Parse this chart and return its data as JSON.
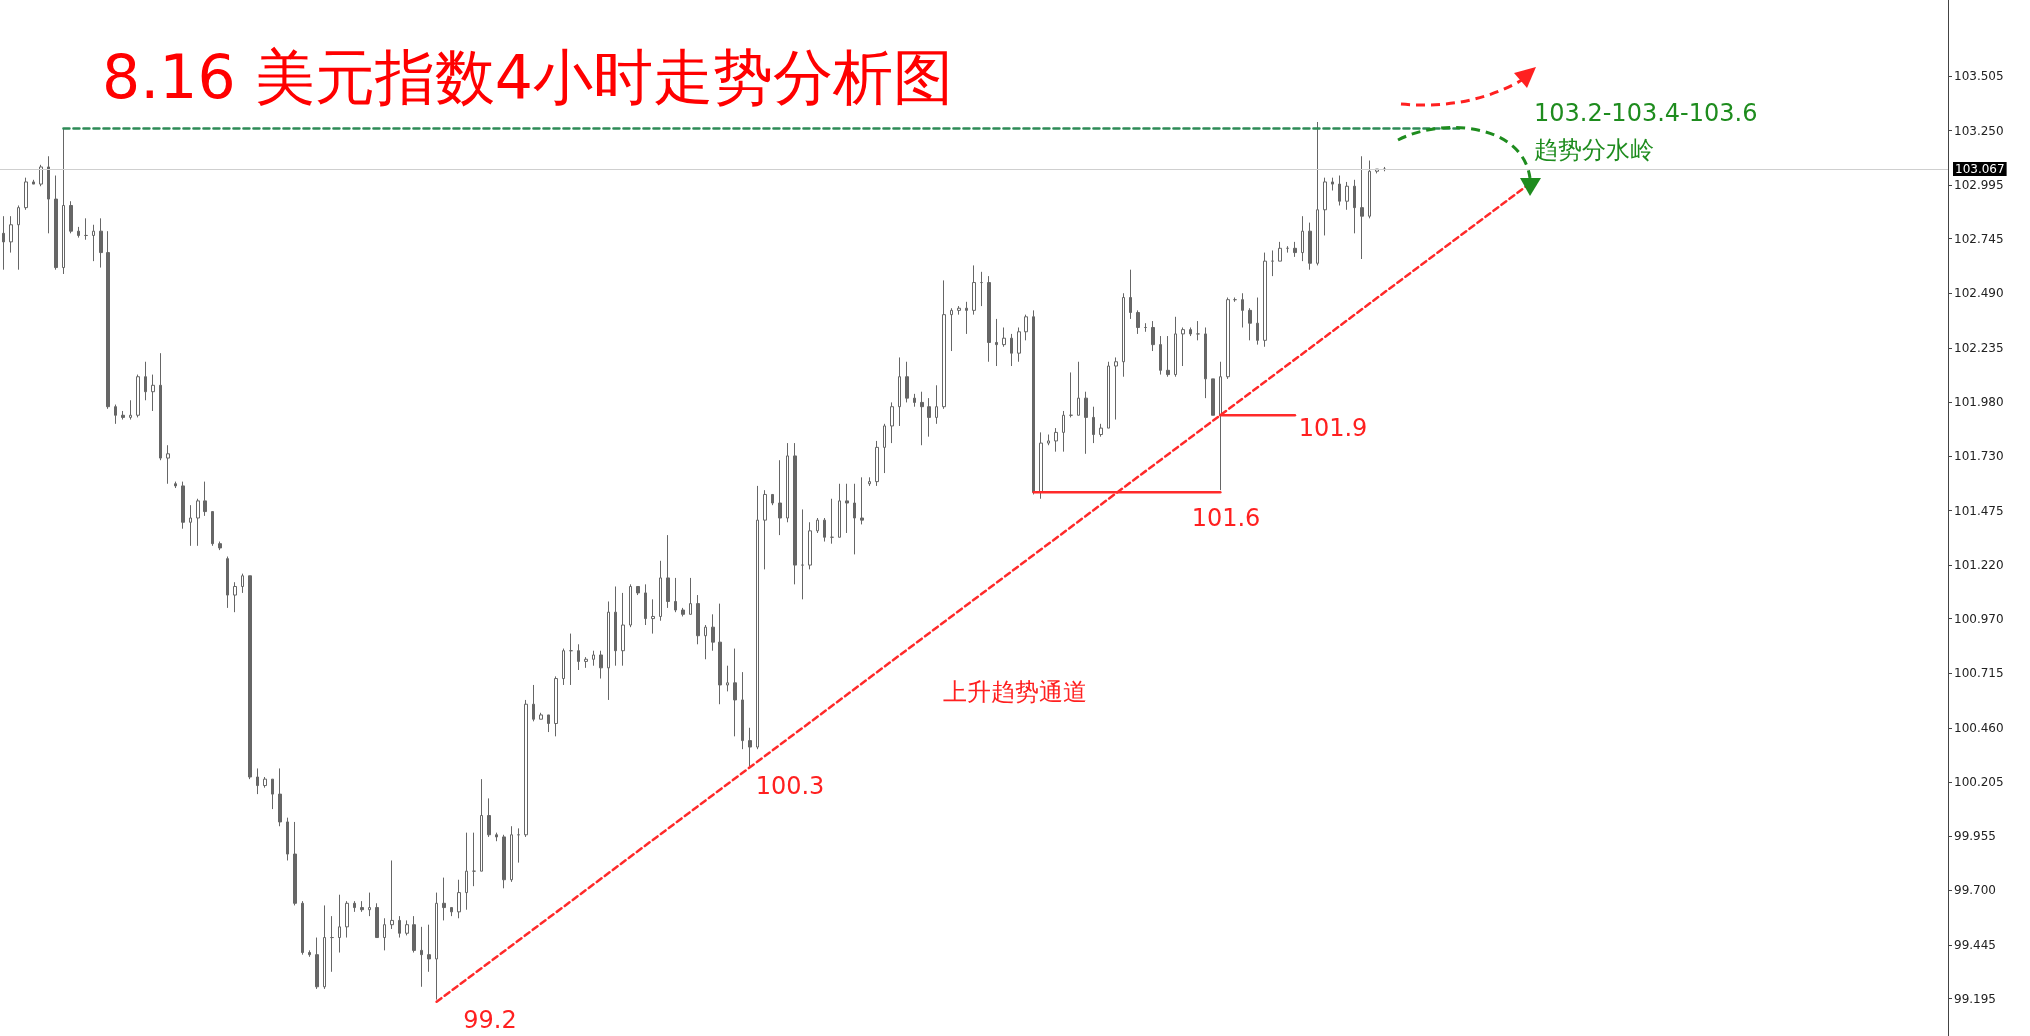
{
  "chart_data": {
    "type": "candlestick",
    "title": "8.16 美元指数4小时走势分析图",
    "color": "#666666",
    "categories": [
      null,
      null,
      null,
      null,
      null,
      null,
      null,
      null,
      null,
      null,
      null,
      null,
      null,
      null,
      null,
      null,
      null,
      null,
      null,
      null,
      null,
      null,
      null,
      null,
      null,
      null,
      null,
      null,
      null,
      null,
      null,
      null,
      null,
      null,
      null,
      null,
      null,
      null,
      null,
      null,
      null,
      null,
      null,
      null,
      null,
      null,
      null,
      null,
      null,
      null,
      null,
      null,
      null,
      null,
      null,
      null,
      null,
      null,
      null,
      null,
      null,
      null,
      null,
      null,
      null,
      null,
      null,
      null,
      null,
      null,
      null,
      null,
      null,
      null,
      null,
      null,
      null,
      null,
      null,
      null,
      null,
      null,
      null,
      null,
      null,
      null,
      null,
      null,
      null,
      null,
      null,
      null,
      null,
      null,
      null,
      null,
      null,
      null,
      null,
      null,
      null,
      null,
      null,
      null,
      null,
      null,
      null,
      null,
      null,
      null,
      null,
      null,
      null,
      null,
      null,
      null,
      null,
      null,
      null,
      null,
      null,
      null,
      null,
      null,
      null,
      null,
      null,
      null,
      null,
      null,
      null,
      null,
      null,
      null,
      null,
      null,
      null,
      null,
      null,
      null,
      null,
      null,
      null,
      null,
      null,
      null,
      null,
      null,
      null,
      null,
      null,
      null,
      null,
      null,
      null,
      null,
      null,
      null,
      null,
      null,
      null,
      null,
      null,
      null,
      null,
      null,
      null,
      null,
      null,
      null,
      null,
      null,
      null,
      null,
      null,
      null,
      null,
      null,
      null,
      null,
      null,
      null,
      null,
      null,
      null,
      null,
      null,
      null,
      null,
      null,
      null,
      null,
      null,
      null,
      null,
      null,
      null,
      null,
      null,
      null,
      null,
      null,
      null,
      null,
      null,
      null,
      null,
      null,
      null,
      null,
      null,
      null,
      null,
      null,
      null,
      null,
      null,
      null,
      null,
      null,
      null,
      null,
      null,
      null,
      null,
      null,
      null,
      null,
      null,
      null,
      null,
      null,
      null,
      null,
      null,
      null,
      null,
      null,
      null,
      null,
      null,
      null,
      null,
      null,
      null,
      null,
      null,
      null,
      null,
      null,
      null,
      null,
      null,
      null,
      null,
      null,
      null,
      null,
      null,
      null,
      null
    ],
    "ohlc": [
      [
        102.77,
        102.85,
        102.6,
        102.73
      ],
      [
        102.73,
        102.85,
        102.68,
        102.81
      ],
      [
        102.81,
        102.9,
        102.6,
        102.89
      ],
      [
        102.89,
        103.03,
        102.88,
        103.01
      ],
      [
        103.01,
        103.02,
        103.0,
        103.0
      ],
      [
        103.0,
        103.09,
        102.99,
        103.08
      ],
      [
        103.08,
        103.13,
        102.77,
        102.93
      ],
      [
        102.93,
        103.04,
        102.6,
        102.61
      ],
      [
        102.61,
        103.26,
        102.58,
        102.9
      ],
      [
        102.9,
        102.92,
        102.77,
        102.78
      ],
      [
        102.78,
        102.8,
        102.75,
        102.76
      ],
      [
        102.76,
        102.84,
        102.74,
        102.76
      ],
      [
        102.76,
        102.81,
        102.64,
        102.78
      ],
      [
        102.78,
        102.84,
        102.61,
        102.68
      ],
      [
        102.68,
        102.78,
        101.95,
        101.96
      ],
      [
        101.96,
        101.97,
        101.88,
        101.92
      ],
      [
        101.92,
        101.94,
        101.9,
        101.91
      ],
      [
        101.91,
        101.99,
        101.9,
        101.92
      ],
      [
        101.92,
        102.11,
        101.91,
        102.1
      ],
      [
        102.1,
        102.17,
        101.99,
        102.03
      ],
      [
        102.03,
        102.11,
        101.94,
        102.06
      ],
      [
        102.06,
        102.21,
        101.71,
        101.72
      ],
      [
        101.72,
        101.78,
        101.6,
        101.74
      ],
      [
        101.6,
        101.61,
        101.58,
        101.59
      ],
      [
        101.59,
        101.61,
        101.39,
        101.42
      ],
      [
        101.42,
        101.5,
        101.31,
        101.44
      ],
      [
        101.44,
        101.53,
        101.31,
        101.52
      ],
      [
        101.52,
        101.61,
        101.45,
        101.47
      ],
      [
        101.47,
        101.47,
        101.31,
        101.32
      ],
      [
        101.32,
        101.33,
        101.29,
        101.3
      ],
      [
        101.25,
        101.26,
        101.02,
        101.08
      ],
      [
        101.08,
        101.14,
        101.0,
        101.12
      ],
      [
        101.12,
        101.18,
        101.09,
        101.17
      ],
      [
        101.17,
        101.17,
        100.22,
        100.23
      ],
      [
        100.23,
        100.27,
        100.15,
        100.19
      ],
      [
        100.19,
        100.23,
        100.18,
        100.22
      ],
      [
        100.22,
        100.22,
        100.08,
        100.15
      ],
      [
        100.15,
        100.27,
        100.0,
        100.02
      ],
      [
        100.02,
        100.04,
        99.84,
        99.87
      ],
      [
        99.87,
        100.02,
        99.63,
        99.64
      ],
      [
        99.64,
        99.65,
        99.4,
        99.41
      ],
      [
        99.41,
        99.42,
        99.39,
        99.4
      ],
      [
        99.4,
        99.48,
        99.24,
        99.25
      ],
      [
        99.25,
        99.63,
        99.24,
        99.48
      ],
      [
        99.48,
        99.58,
        99.32,
        99.48
      ],
      [
        99.48,
        99.68,
        99.41,
        99.53
      ],
      [
        99.53,
        99.65,
        99.48,
        99.64
      ],
      [
        99.64,
        99.65,
        99.6,
        99.62
      ],
      [
        99.62,
        99.65,
        99.6,
        99.61
      ],
      [
        99.61,
        99.69,
        99.58,
        99.62
      ],
      [
        99.62,
        99.64,
        99.48,
        99.48
      ],
      [
        99.48,
        99.57,
        99.42,
        99.54
      ],
      [
        99.54,
        99.84,
        99.52,
        99.56
      ],
      [
        99.56,
        99.58,
        99.48,
        99.5
      ],
      [
        99.5,
        99.56,
        99.49,
        99.54
      ],
      [
        99.54,
        99.58,
        99.41,
        99.42
      ],
      [
        99.42,
        99.53,
        99.25,
        99.4
      ],
      [
        99.4,
        99.54,
        99.32,
        99.38
      ],
      [
        99.38,
        99.69,
        99.19,
        99.64
      ],
      [
        99.64,
        99.76,
        99.56,
        99.62
      ],
      [
        99.62,
        99.62,
        99.58,
        99.6
      ],
      [
        99.6,
        99.75,
        99.57,
        99.69
      ],
      [
        99.69,
        99.97,
        99.61,
        99.79
      ],
      [
        99.79,
        99.97,
        99.72,
        99.79
      ],
      [
        99.79,
        100.22,
        99.79,
        100.05
      ],
      [
        100.05,
        100.13,
        99.95,
        99.96
      ],
      [
        99.96,
        99.97,
        99.93,
        99.95
      ],
      [
        99.95,
        99.96,
        99.71,
        99.75
      ],
      [
        99.75,
        100.0,
        99.74,
        99.96
      ],
      [
        99.96,
        99.99,
        99.83,
        99.96
      ],
      [
        99.96,
        100.59,
        99.95,
        100.57
      ],
      [
        100.57,
        100.66,
        100.49,
        100.5
      ],
      [
        100.5,
        100.53,
        100.5,
        100.52
      ],
      [
        100.52,
        100.52,
        100.44,
        100.48
      ],
      [
        100.48,
        100.7,
        100.42,
        100.69
      ],
      [
        100.69,
        100.83,
        100.66,
        100.82
      ],
      [
        100.82,
        100.9,
        100.66,
        100.82
      ],
      [
        100.82,
        100.85,
        100.73,
        100.77
      ],
      [
        100.77,
        100.79,
        100.74,
        100.78
      ],
      [
        100.78,
        100.82,
        100.75,
        100.8
      ],
      [
        100.8,
        100.82,
        100.69,
        100.74
      ],
      [
        100.74,
        101.05,
        100.59,
        101.0
      ],
      [
        101.0,
        101.12,
        100.75,
        100.82
      ],
      [
        100.82,
        101.09,
        100.75,
        100.94
      ],
      [
        100.94,
        101.13,
        100.93,
        101.12
      ],
      [
        101.12,
        101.12,
        101.08,
        101.09
      ],
      [
        101.09,
        101.13,
        100.94,
        100.97
      ],
      [
        100.97,
        101.06,
        100.9,
        100.98
      ],
      [
        100.98,
        101.24,
        100.96,
        101.16
      ],
      [
        101.16,
        101.36,
        101.02,
        101.05
      ],
      [
        101.05,
        101.16,
        101.0,
        101.01
      ],
      [
        101.01,
        101.02,
        100.98,
        100.99
      ],
      [
        100.99,
        101.16,
        100.99,
        101.04
      ],
      [
        101.04,
        101.08,
        100.85,
        100.89
      ],
      [
        100.89,
        100.94,
        100.78,
        100.93
      ],
      [
        100.93,
        100.99,
        100.82,
        100.86
      ],
      [
        100.86,
        101.04,
        100.57,
        100.66
      ],
      [
        100.66,
        100.75,
        100.63,
        100.67
      ],
      [
        100.67,
        100.83,
        100.42,
        100.59
      ],
      [
        100.59,
        100.72,
        100.36,
        100.4
      ],
      [
        100.4,
        100.46,
        100.28,
        100.37
      ],
      [
        100.37,
        101.59,
        100.36,
        101.43
      ],
      [
        101.43,
        101.57,
        101.2,
        101.55
      ],
      [
        101.55,
        101.55,
        101.5,
        101.51
      ],
      [
        101.51,
        101.71,
        101.36,
        101.44
      ],
      [
        101.44,
        101.79,
        101.42,
        101.73
      ],
      [
        101.73,
        101.79,
        101.13,
        101.22
      ],
      [
        101.22,
        101.48,
        101.06,
        101.22
      ],
      [
        101.22,
        101.42,
        101.2,
        101.38
      ],
      [
        101.38,
        101.44,
        101.37,
        101.43
      ],
      [
        101.43,
        101.44,
        101.33,
        101.35
      ],
      [
        101.35,
        101.53,
        101.32,
        101.35
      ],
      [
        101.35,
        101.6,
        101.35,
        101.52
      ],
      [
        101.52,
        101.6,
        101.37,
        101.51
      ],
      [
        101.51,
        101.6,
        101.27,
        101.44
      ],
      [
        101.44,
        101.63,
        101.41,
        101.43
      ],
      [
        101.6,
        101.63,
        101.59,
        101.61
      ],
      [
        101.61,
        101.8,
        101.59,
        101.77
      ],
      [
        101.77,
        101.88,
        101.65,
        101.87
      ],
      [
        101.87,
        101.98,
        101.79,
        101.96
      ],
      [
        101.96,
        102.19,
        101.87,
        102.1
      ],
      [
        102.1,
        102.17,
        101.98,
        102.0
      ],
      [
        102.0,
        102.02,
        101.96,
        101.98
      ],
      [
        101.98,
        102.03,
        101.78,
        101.96
      ],
      [
        101.96,
        102.0,
        101.82,
        101.91
      ],
      [
        101.91,
        102.06,
        101.88,
        101.96
      ],
      [
        101.96,
        102.55,
        101.95,
        102.39
      ],
      [
        102.39,
        102.42,
        102.22,
        102.41
      ],
      [
        102.41,
        102.43,
        102.39,
        102.42
      ],
      [
        102.42,
        102.45,
        102.3,
        102.41
      ],
      [
        102.41,
        102.62,
        102.39,
        102.54
      ],
      [
        102.54,
        102.59,
        102.43,
        102.54
      ],
      [
        102.54,
        102.57,
        102.17,
        102.26
      ],
      [
        102.26,
        102.37,
        102.15,
        102.25
      ],
      [
        102.25,
        102.33,
        102.24,
        102.28
      ],
      [
        102.28,
        102.3,
        102.15,
        102.21
      ],
      [
        102.21,
        102.33,
        102.17,
        102.31
      ],
      [
        102.31,
        102.39,
        102.27,
        102.38
      ],
      [
        102.38,
        102.41,
        101.55,
        101.56
      ],
      [
        101.56,
        101.84,
        101.53,
        101.79
      ],
      [
        101.79,
        101.83,
        101.78,
        101.8
      ],
      [
        101.8,
        101.86,
        101.75,
        101.84
      ],
      [
        101.84,
        101.94,
        101.75,
        101.92
      ],
      [
        101.92,
        102.12,
        101.91,
        101.92
      ],
      [
        101.92,
        102.17,
        101.92,
        102.0
      ],
      [
        102.0,
        102.03,
        101.74,
        101.91
      ],
      [
        101.91,
        101.96,
        101.79,
        101.83
      ],
      [
        101.83,
        101.88,
        101.82,
        101.86
      ],
      [
        101.86,
        102.17,
        101.86,
        102.15
      ],
      [
        102.15,
        102.19,
        101.9,
        102.17
      ],
      [
        102.17,
        102.49,
        102.1,
        102.47
      ],
      [
        102.47,
        102.6,
        102.37,
        102.4
      ],
      [
        102.4,
        102.41,
        102.3,
        102.33
      ],
      [
        102.33,
        102.35,
        102.31,
        102.33
      ],
      [
        102.33,
        102.36,
        102.22,
        102.25
      ],
      [
        102.25,
        102.29,
        102.11,
        102.13
      ],
      [
        102.13,
        102.29,
        102.1,
        102.11
      ],
      [
        102.11,
        102.38,
        102.1,
        102.3
      ],
      [
        102.3,
        102.33,
        102.15,
        102.32
      ],
      [
        102.32,
        102.33,
        102.29,
        102.3
      ],
      [
        102.3,
        102.36,
        102.27,
        102.3
      ],
      [
        102.3,
        102.33,
        102.0,
        102.09
      ],
      [
        102.09,
        102.09,
        101.92,
        101.92
      ],
      [
        101.92,
        102.17,
        101.57,
        102.1
      ],
      [
        102.1,
        102.47,
        102.09,
        102.46
      ],
      [
        102.46,
        102.47,
        102.45,
        102.46
      ],
      [
        102.46,
        102.49,
        102.33,
        102.41
      ],
      [
        102.41,
        102.42,
        102.27,
        102.35
      ],
      [
        102.35,
        102.47,
        102.25,
        102.27
      ],
      [
        102.27,
        102.68,
        102.24,
        102.64
      ],
      [
        102.64,
        102.69,
        102.57,
        102.64
      ],
      [
        102.64,
        102.73,
        102.64,
        102.7
      ],
      [
        102.7,
        102.71,
        102.68,
        102.7
      ],
      [
        102.7,
        102.73,
        102.66,
        102.68
      ],
      [
        102.68,
        102.85,
        102.64,
        102.78
      ],
      [
        102.78,
        102.82,
        102.6,
        102.63
      ],
      [
        102.63,
        103.29,
        102.62,
        102.88
      ],
      [
        102.88,
        103.03,
        102.76,
        103.01
      ],
      [
        103.01,
        103.03,
        102.97,
        103.0
      ],
      [
        103.0,
        103.04,
        102.9,
        102.92
      ],
      [
        102.92,
        103.01,
        102.88,
        102.99
      ],
      [
        102.99,
        103.02,
        102.77,
        102.89
      ],
      [
        102.89,
        103.13,
        102.65,
        102.85
      ],
      [
        102.85,
        103.11,
        102.84,
        103.06
      ],
      [
        103.06,
        103.07,
        103.05,
        103.07
      ],
      [
        103.07,
        103.08,
        103.06,
        103.07
      ],
      null,
      null,
      null,
      null,
      null,
      null,
      null,
      null,
      null,
      null,
      null,
      null,
      null,
      null,
      null,
      null,
      null,
      null,
      null,
      null,
      null,
      null,
      null,
      null,
      null,
      null,
      null,
      null,
      null,
      null,
      null,
      null,
      null,
      null,
      null,
      null,
      null,
      null,
      null,
      null,
      null,
      null,
      null,
      null,
      null,
      null,
      null,
      null,
      null,
      null,
      null,
      null,
      null,
      null,
      null,
      null,
      null,
      null,
      null,
      null,
      null,
      null,
      null,
      null,
      null,
      null,
      null,
      null,
      null,
      null,
      null,
      null,
      null,
      null,
      null
    ],
    "series": [
      {
        "type": "line",
        "color": "#ff2a2a",
        "line_style": "dashed",
        "values": [
          null,
          null,
          null,
          null,
          null,
          null,
          null,
          null,
          null,
          null,
          null,
          null,
          null,
          null,
          null,
          null,
          null,
          null,
          null,
          null,
          null,
          null,
          null,
          null,
          null,
          null,
          null,
          null,
          null,
          null,
          null,
          null,
          null,
          null,
          null,
          null,
          null,
          null,
          null,
          null,
          null,
          null,
          null,
          null,
          null,
          null,
          null,
          null,
          null,
          null,
          null,
          null,
          null,
          null,
          null,
          null,
          null,
          null,
          99.18,
          null,
          null,
          null,
          null,
          null,
          null,
          null,
          null,
          null,
          null,
          null,
          null,
          null,
          null,
          null,
          null,
          null,
          null,
          null,
          null,
          null,
          null,
          null,
          null,
          null,
          null,
          null,
          null,
          null,
          null,
          null,
          null,
          null,
          null,
          null,
          null,
          null,
          null,
          null,
          null,
          null,
          null,
          null,
          null,
          null,
          null,
          null,
          null,
          null,
          null,
          null,
          null,
          null,
          null,
          null,
          null,
          null,
          null,
          null,
          null,
          null,
          null,
          null,
          null,
          null,
          null,
          null,
          null,
          null,
          null,
          null,
          null,
          null,
          null,
          null,
          null,
          null,
          null,
          null,
          null,
          null,
          null,
          null,
          null,
          null,
          null,
          null,
          null,
          null,
          null,
          null,
          null,
          null,
          null,
          null,
          null,
          null,
          null,
          null,
          null,
          null,
          null,
          null,
          null,
          null,
          null,
          null,
          null,
          null,
          null,
          null,
          null,
          null,
          null,
          null,
          null,
          null,
          null,
          null,
          null,
          null,
          null,
          null,
          null,
          null,
          null,
          null,
          null,
          null,
          null,
          null,
          null,
          null,
          null,
          null,
          null,
          null,
          null,
          null,
          null,
          null,
          null,
          null,
          null,
          null,
          102.99,
          null,
          null,
          null,
          null,
          null,
          null,
          null,
          null,
          null,
          null,
          null,
          null,
          null,
          null,
          null,
          null,
          null,
          null,
          null,
          null,
          null,
          null,
          null,
          null,
          null,
          null,
          null,
          null,
          null,
          null,
          null,
          null,
          null,
          null,
          null,
          null,
          null,
          null,
          null,
          null,
          null,
          null,
          null,
          null,
          null,
          null,
          null,
          null,
          null,
          null,
          null,
          null,
          null,
          null,
          null,
          null
        ]
      },
      {
        "type": "line",
        "color": "#2e8b57",
        "line_style": "dashed",
        "values": [
          null,
          null,
          null,
          null,
          null,
          null,
          null,
          null,
          103.26,
          null,
          null,
          null,
          null,
          null,
          null,
          null,
          null,
          null,
          null,
          null,
          null,
          null,
          null,
          null,
          null,
          null,
          null,
          null,
          null,
          null,
          null,
          null,
          null,
          null,
          null,
          null,
          null,
          null,
          null,
          null,
          null,
          null,
          null,
          null,
          null,
          null,
          null,
          null,
          null,
          null,
          null,
          null,
          null,
          null,
          null,
          null,
          null,
          null,
          null,
          null,
          null,
          null,
          null,
          null,
          null,
          null,
          null,
          null,
          null,
          null,
          null,
          null,
          null,
          null,
          null,
          null,
          null,
          null,
          null,
          null,
          null,
          null,
          null,
          null,
          null,
          null,
          null,
          null,
          null,
          null,
          null,
          null,
          null,
          null,
          null,
          null,
          null,
          null,
          null,
          null,
          null,
          null,
          null,
          null,
          null,
          null,
          null,
          null,
          null,
          null,
          null,
          null,
          null,
          null,
          null,
          null,
          null,
          null,
          null,
          null,
          null,
          null,
          null,
          null,
          null,
          null,
          null,
          null,
          null,
          null,
          null,
          null,
          null,
          null,
          null,
          null,
          null,
          null,
          null,
          null,
          null,
          null,
          null,
          null,
          null,
          null,
          null,
          null,
          null,
          null,
          null,
          null,
          null,
          null,
          null,
          null,
          null,
          null,
          null,
          null,
          null,
          null,
          null,
          null,
          null,
          null,
          null,
          null,
          null,
          null,
          null,
          null,
          null,
          null,
          null,
          null,
          null,
          null,
          null,
          null,
          null,
          null,
          null,
          null,
          null,
          null,
          null,
          null,
          null,
          null,
          null,
          null,
          null,
          null,
          null,
          103.26,
          null,
          null,
          null,
          null,
          null,
          null,
          null,
          null,
          null,
          null,
          null,
          null,
          null,
          null,
          null,
          null,
          null,
          null,
          null,
          null,
          null,
          null,
          null,
          null,
          null,
          null,
          null,
          null,
          null,
          null,
          null,
          null,
          null,
          null,
          null,
          null,
          null,
          null,
          null,
          null,
          null,
          null,
          null,
          null,
          null,
          null,
          null,
          null,
          null,
          null,
          null,
          null,
          null,
          null,
          null,
          null,
          null,
          null,
          null,
          null,
          null,
          null,
          null,
          null,
          null
        ]
      },
      {
        "type": "line",
        "color": "#ff2a2a",
        "line_style": "solid",
        "values": [
          null,
          null,
          null,
          null,
          null,
          null,
          null,
          null,
          null,
          null,
          null,
          null,
          null,
          null,
          null,
          null,
          null,
          null,
          null,
          null,
          null,
          null,
          null,
          null,
          null,
          null,
          null,
          null,
          null,
          null,
          null,
          null,
          null,
          null,
          null,
          null,
          null,
          null,
          null,
          null,
          null,
          null,
          null,
          null,
          null,
          null,
          null,
          null,
          null,
          null,
          null,
          null,
          null,
          null,
          null,
          null,
          null,
          null,
          null,
          null,
          null,
          null,
          null,
          null,
          null,
          null,
          null,
          null,
          null,
          null,
          null,
          null,
          null,
          null,
          null,
          null,
          null,
          null,
          null,
          null,
          null,
          null,
          null,
          null,
          null,
          null,
          null,
          null,
          null,
          null,
          null,
          null,
          null,
          null,
          null,
          null,
          null,
          null,
          null,
          null,
          null,
          null,
          null,
          null,
          null,
          null,
          null,
          null,
          null,
          null,
          null,
          null,
          null,
          null,
          null,
          null,
          null,
          null,
          null,
          null,
          null,
          null,
          null,
          null,
          null,
          null,
          null,
          null,
          null,
          null,
          null,
          null,
          null,
          null,
          null,
          null,
          null,
          null,
          101.56,
          null,
          null,
          null,
          null,
          null,
          null,
          null,
          null,
          null,
          null,
          null,
          null,
          null,
          null,
          null,
          null,
          null,
          null,
          null,
          null,
          null,
          null,
          null,
          null,
          101.56,
          null,
          null,
          null,
          null,
          null,
          null,
          null,
          null,
          null,
          null,
          null,
          null,
          null,
          null,
          null,
          null,
          null,
          null,
          null,
          null,
          null,
          null,
          null,
          null,
          null,
          null,
          null,
          null,
          null,
          null,
          null,
          null,
          null,
          null,
          null,
          null,
          null,
          null,
          null,
          null,
          null,
          null,
          null,
          null,
          null,
          null,
          null,
          null,
          null,
          null,
          null,
          null,
          null,
          null,
          null,
          null,
          null,
          null,
          null,
          null,
          null,
          null,
          null,
          null,
          null,
          null,
          null,
          null,
          null,
          null,
          null,
          null,
          null,
          null,
          null,
          null,
          null,
          null,
          null,
          null,
          null,
          null,
          null,
          null,
          null,
          null,
          null,
          null,
          null,
          null,
          null,
          null,
          null,
          null,
          null,
          null,
          null
        ]
      },
      {
        "type": "line",
        "color": "#ff2a2a",
        "line_style": "solid",
        "values": [
          null,
          null,
          null,
          null,
          null,
          null,
          null,
          null,
          null,
          null,
          null,
          null,
          null,
          null,
          null,
          null,
          null,
          null,
          null,
          null,
          null,
          null,
          null,
          null,
          null,
          null,
          null,
          null,
          null,
          null,
          null,
          null,
          null,
          null,
          null,
          null,
          null,
          null,
          null,
          null,
          null,
          null,
          null,
          null,
          null,
          null,
          null,
          null,
          null,
          null,
          null,
          null,
          null,
          null,
          null,
          null,
          null,
          null,
          null,
          null,
          null,
          null,
          null,
          null,
          null,
          null,
          null,
          null,
          null,
          null,
          null,
          null,
          null,
          null,
          null,
          null,
          null,
          null,
          null,
          null,
          null,
          null,
          null,
          null,
          null,
          null,
          null,
          null,
          null,
          null,
          null,
          null,
          null,
          null,
          null,
          null,
          null,
          null,
          null,
          null,
          null,
          null,
          null,
          null,
          null,
          null,
          null,
          null,
          null,
          null,
          null,
          null,
          null,
          null,
          null,
          null,
          null,
          null,
          null,
          null,
          null,
          null,
          null,
          null,
          null,
          null,
          null,
          null,
          null,
          null,
          null,
          null,
          null,
          null,
          null,
          null,
          null,
          null,
          null,
          null,
          null,
          null,
          null,
          null,
          null,
          null,
          null,
          null,
          null,
          null,
          null,
          null,
          null,
          null,
          null,
          null,
          null,
          null,
          null,
          null,
          null,
          null,
          null,
          101.92,
          null,
          null,
          null,
          null,
          null,
          null,
          null,
          null,
          null,
          101.92,
          null,
          null,
          null,
          null,
          null,
          null,
          null,
          null,
          null,
          null,
          null,
          null,
          null,
          null,
          null,
          null,
          null,
          null,
          null,
          null,
          null,
          null,
          null,
          null,
          null,
          null,
          null,
          null,
          null,
          null,
          null,
          null,
          null,
          null,
          null,
          null,
          null,
          null,
          null,
          null,
          null,
          null,
          null,
          null,
          null,
          null,
          null,
          null,
          null,
          null,
          null,
          null,
          null,
          null,
          null,
          null,
          null,
          null,
          null,
          null,
          null,
          null,
          null,
          null,
          null,
          null,
          null,
          null,
          null,
          null,
          null,
          null,
          null,
          null,
          null,
          null,
          null,
          null,
          null,
          null,
          null,
          null,
          null,
          null,
          null,
          null,
          null
        ]
      }
    ],
    "ylim": [
      99.02,
      103.86
    ],
    "yticks": [
      {
        "value": 99.195,
        "label": "99.195"
      },
      {
        "value": 99.445,
        "label": "99.445"
      },
      {
        "value": 99.7,
        "label": "99.700"
      },
      {
        "value": 99.955,
        "label": "99.955"
      },
      {
        "value": 100.205,
        "label": "100.205"
      },
      {
        "value": 100.46,
        "label": "100.460"
      },
      {
        "value": 100.715,
        "label": "100.715"
      },
      {
        "value": 100.97,
        "label": "100.970"
      },
      {
        "value": 101.22,
        "label": "101.220"
      },
      {
        "value": 101.475,
        "label": "101.475"
      },
      {
        "value": 101.73,
        "label": "101.730"
      },
      {
        "value": 101.98,
        "label": "101.980"
      },
      {
        "value": 102.235,
        "label": "102.235"
      },
      {
        "value": 102.49,
        "label": "102.490"
      },
      {
        "value": 102.745,
        "label": "102.745"
      },
      {
        "value": 102.995,
        "label": "102.995"
      },
      {
        "value": 103.25,
        "label": "103.250"
      },
      {
        "value": 103.505,
        "label": "103.505"
      }
    ],
    "ref_lines": [
      {
        "axis": "y",
        "value": 103.067,
        "label": "103.067",
        "color": "#cfcfcf"
      }
    ],
    "annotations": [
      "99.2",
      "100.3",
      "101.6",
      "101.9",
      "上升趋势通道",
      "103.2-103.4-103.6",
      "趋势分水岭"
    ],
    "tick_labels": "y",
    "grid": false
  }
}
